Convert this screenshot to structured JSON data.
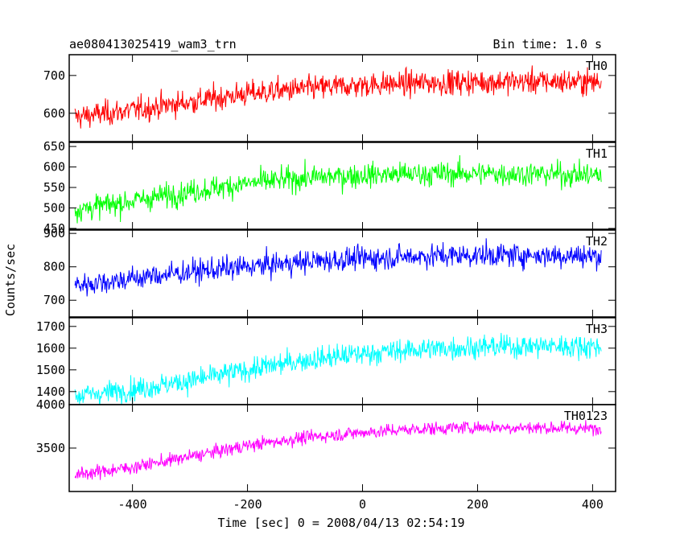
{
  "chart_data": {
    "type": "line",
    "title": "ae080413025419_wam3_trn",
    "subtitle": "Bin time: 1.0 s",
    "xlabel": "Time [sec] 0 = 2008/04/13 02:54:19",
    "ylabel": "Counts/sec",
    "xlim": [
      -510,
      440
    ],
    "xticks": [
      -400,
      -200,
      0,
      200,
      400
    ],
    "x_range": [
      -500,
      415
    ],
    "grid": false,
    "panels": [
      {
        "name": "TH0",
        "color": "#ff0000",
        "ylim": [
          525,
          755
        ],
        "yticks": [
          600,
          700
        ],
        "trend": {
          "x": [
            -500,
            -400,
            -300,
            -200,
            -100,
            0,
            100,
            200,
            300,
            415
          ],
          "y": [
            590,
            608,
            630,
            652,
            665,
            675,
            680,
            683,
            684,
            683
          ]
        },
        "noise": 28
      },
      {
        "name": "TH1",
        "color": "#00ff00",
        "ylim": [
          448,
          660
        ],
        "yticks": [
          450,
          500,
          550,
          600,
          650
        ],
        "trend": {
          "x": [
            -500,
            -400,
            -300,
            -200,
            -100,
            0,
            100,
            200,
            300,
            415
          ],
          "y": [
            495,
            517,
            540,
            560,
            573,
            580,
            583,
            584,
            583,
            580
          ]
        },
        "noise": 25
      },
      {
        "name": "TH2",
        "color": "#0000ff",
        "ylim": [
          650,
          910
        ],
        "yticks": [
          700,
          800,
          900
        ],
        "trend": {
          "x": [
            -500,
            -400,
            -300,
            -200,
            -100,
            0,
            100,
            200,
            300,
            415
          ],
          "y": [
            745,
            765,
            785,
            800,
            815,
            825,
            832,
            835,
            835,
            832
          ]
        },
        "noise": 30
      },
      {
        "name": "TH3",
        "color": "#00ffff",
        "ylim": [
          1340,
          1740
        ],
        "yticks": [
          1400,
          1500,
          1600,
          1700
        ],
        "trend": {
          "x": [
            -500,
            -400,
            -300,
            -200,
            -100,
            0,
            100,
            200,
            300,
            415
          ],
          "y": [
            1380,
            1410,
            1450,
            1500,
            1545,
            1575,
            1595,
            1605,
            1610,
            1608
          ]
        },
        "noise": 45
      },
      {
        "name": "TH0123",
        "color": "#ff00ff",
        "ylim": [
          3000,
          4000
        ],
        "yticks": [
          3500,
          4000
        ],
        "trend": {
          "x": [
            -500,
            -400,
            -300,
            -200,
            -100,
            0,
            100,
            200,
            300,
            415
          ],
          "y": [
            3190,
            3280,
            3400,
            3530,
            3620,
            3680,
            3720,
            3740,
            3735,
            3720
          ]
        },
        "noise": 65
      }
    ]
  }
}
